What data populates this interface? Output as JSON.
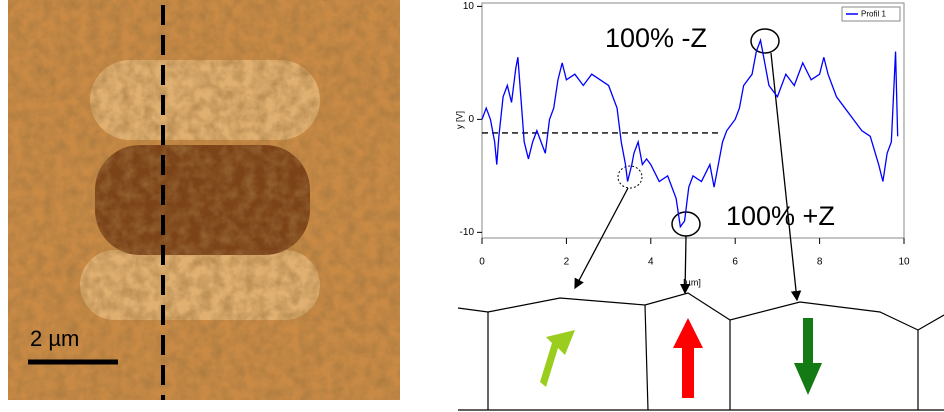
{
  "image": {
    "scale_bar": "2 µm"
  },
  "chart_data": {
    "type": "line",
    "ylabel": "y [V]",
    "xlabel": "[µm]",
    "x": [
      0.0,
      0.1,
      0.2,
      0.3,
      0.35,
      0.4,
      0.5,
      0.6,
      0.7,
      0.8,
      0.85,
      0.9,
      1.0,
      1.1,
      1.2,
      1.3,
      1.4,
      1.5,
      1.6,
      1.7,
      1.8,
      1.9,
      2.0,
      2.2,
      2.4,
      2.6,
      2.8,
      3.0,
      3.1,
      3.2,
      3.3,
      3.4,
      3.45,
      3.55,
      3.6,
      3.7,
      3.8,
      3.9,
      4.0,
      4.2,
      4.4,
      4.6,
      4.7,
      4.8,
      4.9,
      5.0,
      5.2,
      5.4,
      5.5,
      5.6,
      5.7,
      5.8,
      6.0,
      6.1,
      6.2,
      6.4,
      6.5,
      6.6,
      6.7,
      6.8,
      7.0,
      7.2,
      7.4,
      7.6,
      7.8,
      8.0,
      8.1,
      8.2,
      8.4,
      8.6,
      8.8,
      9.0,
      9.2,
      9.4,
      9.5,
      9.6,
      9.7,
      9.8,
      9.85
    ],
    "series": [
      {
        "name": "Profil 1",
        "color": "#0000ff",
        "values": [
          0,
          1,
          0,
          -2,
          -4,
          -1.5,
          2,
          3,
          1.5,
          4.5,
          5.5,
          3,
          -2,
          -3.5,
          -2,
          -1,
          -2,
          -3,
          0,
          1,
          3.5,
          5,
          3.5,
          4,
          3,
          4,
          3.5,
          3,
          2,
          1,
          -2,
          -4,
          -5.5,
          -4,
          -3,
          -2,
          -4,
          -3.5,
          -4,
          -5.5,
          -5,
          -7,
          -9.5,
          -9,
          -6,
          -5,
          -5.5,
          -4,
          -6,
          -4,
          -2,
          -1,
          0,
          1,
          3,
          4,
          6,
          7,
          5,
          3,
          2,
          4,
          3,
          5,
          3.5,
          4,
          5.5,
          4,
          2,
          1,
          0,
          -1,
          -1.5,
          -4,
          -5.5,
          -3,
          -2,
          6,
          -1.5
        ]
      }
    ],
    "xlim": [
      0,
      10
    ],
    "ylim": [
      -10.5,
      10.3
    ],
    "xticks": [
      0,
      2,
      4,
      6,
      8,
      10
    ],
    "yticks": [
      -10,
      0,
      10
    ],
    "reference_line": {
      "y": -1.2,
      "x": [
        0,
        5.6
      ]
    },
    "annotations": [
      "100% -Z",
      "100% +Z"
    ]
  }
}
